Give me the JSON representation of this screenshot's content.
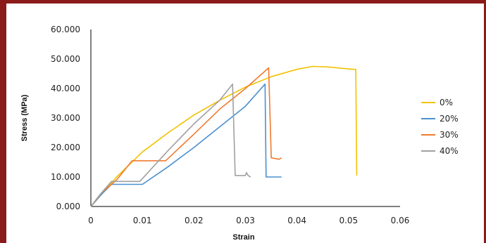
{
  "chart_data": {
    "type": "line",
    "title": "",
    "xlabel": "Strain",
    "ylabel": "Stress (MPa)",
    "xlim": [
      0,
      0.06
    ],
    "ylim": [
      0,
      60
    ],
    "x_ticks": [
      "0",
      "0.01",
      "0.02",
      "0.03",
      "0.04",
      "0.05",
      "0.06"
    ],
    "y_ticks": [
      "0.000",
      "10.000",
      "20.000",
      "30.000",
      "40.000",
      "50.000",
      "60.000"
    ],
    "grid": false,
    "legend_position": "right",
    "series": [
      {
        "name": "0%",
        "color": "#f2c200",
        "points": [
          [
            0,
            0
          ],
          [
            0.002,
            4
          ],
          [
            0.005,
            10
          ],
          [
            0.01,
            18.5
          ],
          [
            0.015,
            25
          ],
          [
            0.02,
            31
          ],
          [
            0.025,
            36
          ],
          [
            0.03,
            40.5
          ],
          [
            0.035,
            44
          ],
          [
            0.04,
            46.5
          ],
          [
            0.043,
            47.5
          ],
          [
            0.046,
            47.3
          ],
          [
            0.049,
            46.8
          ],
          [
            0.051,
            46.5
          ],
          [
            0.0514,
            46.5
          ],
          [
            0.0516,
            10.5
          ]
        ]
      },
      {
        "name": "20%",
        "color": "#4a90d0",
        "points": [
          [
            0,
            0
          ],
          [
            0.002,
            4
          ],
          [
            0.004,
            7.5
          ],
          [
            0.01,
            7.5
          ],
          [
            0.015,
            13.5
          ],
          [
            0.02,
            20
          ],
          [
            0.025,
            27
          ],
          [
            0.03,
            34
          ],
          [
            0.0338,
            41.5
          ],
          [
            0.034,
            10
          ],
          [
            0.037,
            10
          ]
        ]
      },
      {
        "name": "30%",
        "color": "#ee7b30",
        "points": [
          [
            0,
            0
          ],
          [
            0.002,
            4.5
          ],
          [
            0.005,
            9
          ],
          [
            0.008,
            15.5
          ],
          [
            0.011,
            15.5
          ],
          [
            0.0145,
            15.5
          ],
          [
            0.02,
            24.5
          ],
          [
            0.025,
            33
          ],
          [
            0.03,
            40
          ],
          [
            0.0345,
            47
          ],
          [
            0.035,
            16.5
          ],
          [
            0.0365,
            16
          ],
          [
            0.037,
            16.5
          ]
        ]
      },
      {
        "name": "40%",
        "color": "#a0a0a0",
        "points": [
          [
            0,
            0
          ],
          [
            0.002,
            4.5
          ],
          [
            0.004,
            8.5
          ],
          [
            0.0095,
            8.5
          ],
          [
            0.015,
            19
          ],
          [
            0.02,
            28
          ],
          [
            0.025,
            36
          ],
          [
            0.0275,
            41.5
          ],
          [
            0.028,
            10.5
          ],
          [
            0.03,
            10.5
          ],
          [
            0.0302,
            11.5
          ],
          [
            0.0305,
            10.5
          ],
          [
            0.031,
            10
          ]
        ]
      }
    ]
  }
}
